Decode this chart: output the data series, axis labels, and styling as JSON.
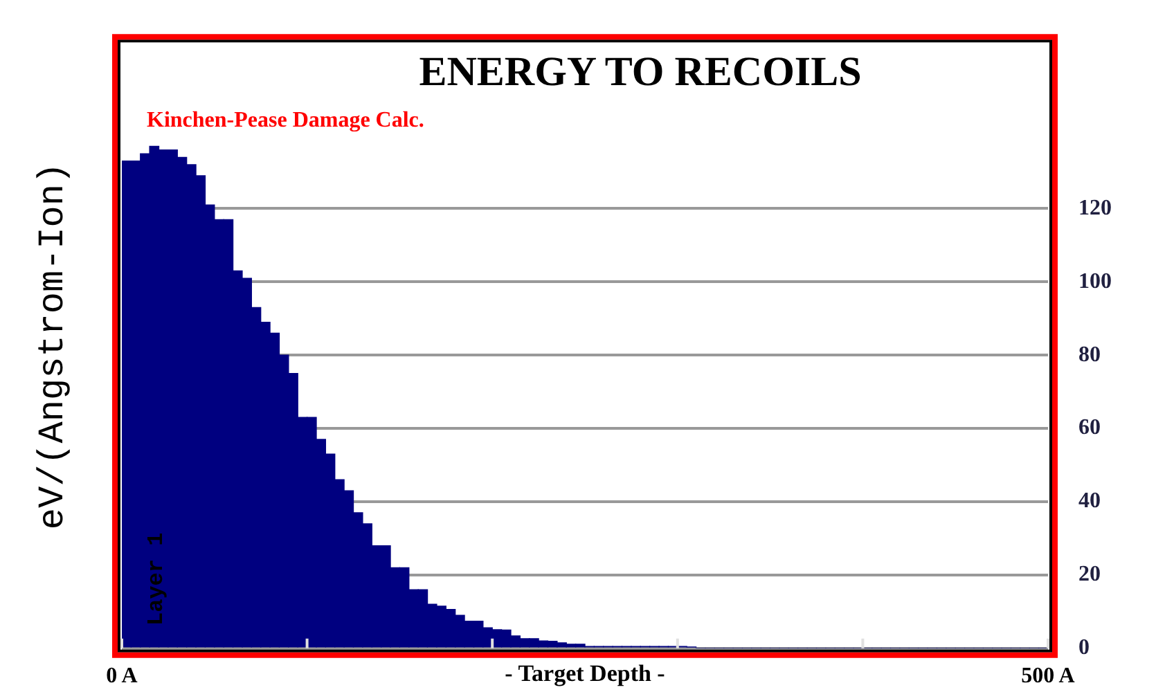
{
  "chart_data": {
    "type": "histogram",
    "title": "ENERGY TO RECOILS",
    "subtitle": "Kinchen-Pease Damage Calc.",
    "xlabel": "- Target Depth -",
    "ylabel": "eV/(Angstrom-Ion)",
    "annotations": [
      "Layer 1"
    ],
    "bins": [
      0,
      5,
      10,
      15,
      20,
      25,
      30,
      35,
      40,
      45,
      50,
      55,
      60,
      65,
      70,
      75,
      80,
      85,
      90,
      95,
      100,
      105,
      110,
      115,
      120,
      125,
      130,
      135,
      140,
      145,
      150,
      155,
      160,
      165,
      170,
      175,
      180,
      185,
      190,
      195,
      200,
      205,
      210,
      215,
      220,
      225,
      230,
      235,
      240,
      245,
      250,
      255,
      260,
      265,
      270,
      275,
      280,
      285,
      290,
      295,
      300,
      305,
      310,
      315,
      320,
      325,
      330,
      335,
      340,
      345,
      350,
      355,
      360,
      365,
      370,
      375,
      380,
      385,
      390,
      395,
      400,
      405,
      410,
      415,
      420,
      425,
      430,
      435,
      440,
      445,
      450,
      455,
      460,
      465,
      470,
      475,
      480,
      485,
      490,
      495,
      500
    ],
    "values": [
      133,
      133,
      135,
      137,
      136,
      136,
      134,
      132,
      129,
      121,
      117,
      117,
      103,
      101,
      93,
      89,
      86,
      80,
      75,
      63,
      63,
      57,
      53,
      46,
      43,
      37,
      34,
      28,
      28,
      22,
      22,
      16,
      16,
      12,
      11.5,
      10.6,
      9,
      7.4,
      7.4,
      5.6,
      5.1,
      5,
      3.4,
      2.6,
      2.6,
      2,
      1.9,
      1.5,
      1.1,
      1.1,
      0.5,
      0.5,
      0.5,
      0.5,
      0.5,
      0.5,
      0.5,
      0.5,
      0.5,
      0.5,
      0.5,
      0.3,
      0,
      0,
      0,
      0,
      0,
      0,
      0,
      0,
      0,
      0,
      0,
      0,
      0,
      0,
      0,
      0,
      0,
      0,
      0,
      0,
      0,
      0,
      0,
      0,
      0,
      0,
      0,
      0,
      0,
      0,
      0,
      0,
      0,
      0,
      0,
      0,
      0,
      0
    ],
    "color": "#000080",
    "xlim": [
      0,
      500
    ],
    "xticks": [
      {
        "value": 0,
        "label": "0 A"
      },
      {
        "value": 100,
        "label": null
      },
      {
        "value": 200,
        "label": null
      },
      {
        "value": 300,
        "label": null
      },
      {
        "value": 400,
        "label": null
      },
      {
        "value": 500,
        "label": "500 A"
      }
    ],
    "ylim": [
      0,
      165
    ],
    "yticks": [
      0,
      20,
      40,
      60,
      80,
      100,
      120
    ],
    "grid": "y",
    "legend": false
  }
}
